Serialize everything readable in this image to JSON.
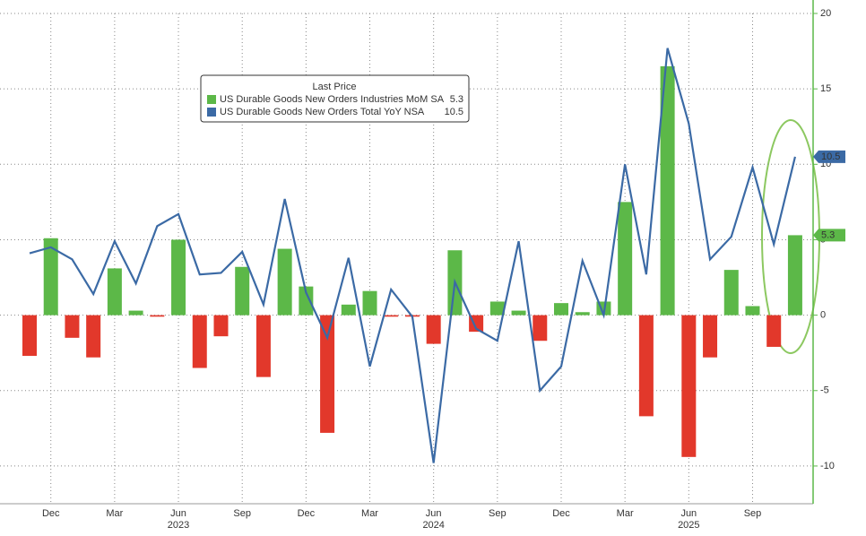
{
  "chart_data": {
    "type": "bar_line",
    "categories": [
      null,
      "Dec",
      null,
      null,
      "Mar",
      null,
      null,
      "Jun",
      null,
      null,
      "Sep",
      null,
      null,
      "Dec",
      null,
      null,
      "Mar",
      null,
      null,
      "Jun",
      null,
      null,
      "Sep",
      null,
      null,
      "Dec",
      null,
      null,
      "Mar",
      null,
      null,
      "Jun",
      null,
      null,
      "Sep",
      null,
      null
    ],
    "years": [
      "2023",
      "2024",
      "2025"
    ],
    "legend_title": "Last Price",
    "series": [
      {
        "name": "US Durable Goods New Orders Industries MoM SA",
        "type": "bar",
        "color": "#5cb848",
        "negative_color": "#e2382b",
        "values": [
          -2.7,
          5.1,
          -1.5,
          -2.8,
          3.1,
          0.3,
          -0.1,
          5.0,
          -3.5,
          -1.4,
          3.2,
          -4.1,
          4.4,
          1.9,
          -7.8,
          0.7,
          1.6,
          -0.1,
          -0.1,
          -1.9,
          4.3,
          -1.1,
          0.9,
          0.3,
          -1.7,
          0.8,
          0.2,
          0.9,
          7.5,
          -6.7,
          16.5,
          -9.4,
          -2.8,
          3.0,
          0.6,
          -2.1,
          5.3
        ]
      },
      {
        "name": "US Durable Goods New Orders Total YoY NSA",
        "type": "line",
        "color": "#3b6aa5",
        "values": [
          4.1,
          4.5,
          3.7,
          1.4,
          4.9,
          2.1,
          5.9,
          6.7,
          2.7,
          2.8,
          4.2,
          0.7,
          7.7,
          1.5,
          -1.5,
          3.8,
          -3.4,
          1.7,
          -0.1,
          -9.8,
          2.2,
          -0.9,
          -1.7,
          4.9,
          -5.0,
          -3.4,
          3.6,
          0.0,
          10.0,
          2.7,
          17.7,
          12.7,
          3.7,
          5.2,
          9.8,
          4.7,
          10.5
        ]
      }
    ],
    "ylim": [
      -12.5,
      20
    ],
    "yticks": [
      20,
      15,
      10,
      5,
      0,
      -5,
      -10
    ],
    "grid": true
  }
}
